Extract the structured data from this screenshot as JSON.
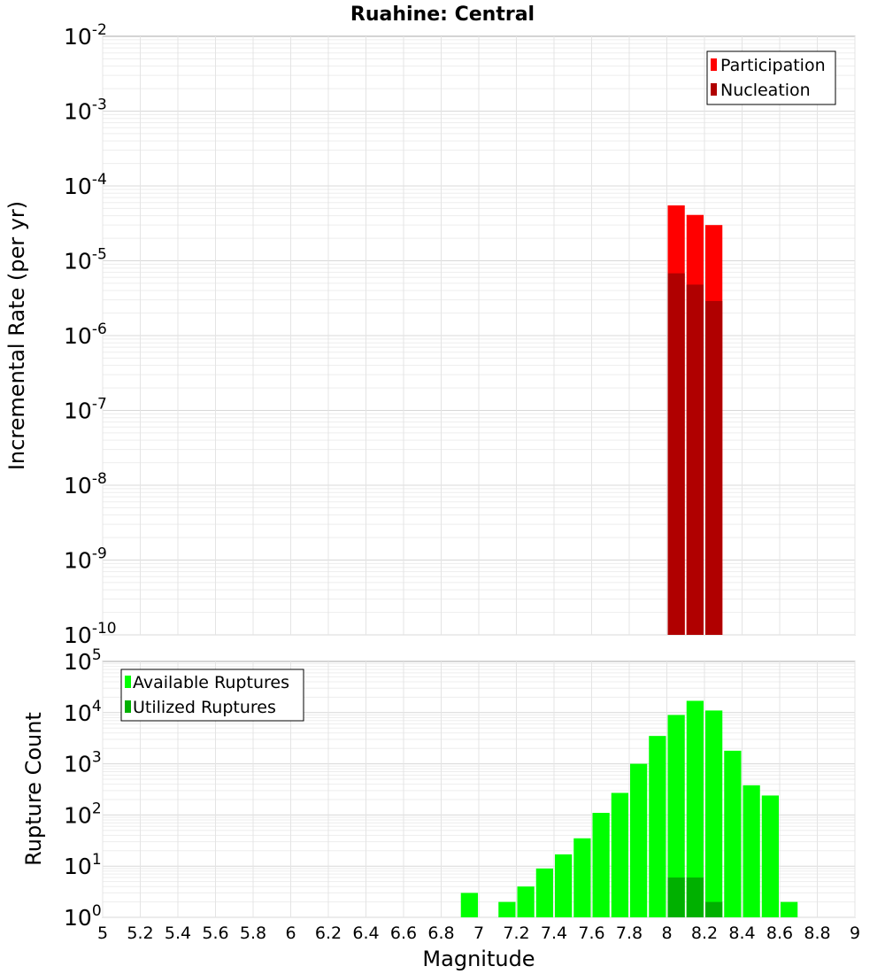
{
  "chart_data": [
    {
      "type": "bar",
      "title": "Ruahine: Central",
      "xlabel": "",
      "ylabel": "Incremental Rate (per yr)",
      "xlim": [
        5,
        9
      ],
      "ylim": [
        1e-10,
        0.01
      ],
      "yscale": "log",
      "grid": true,
      "legend_position": "top-right",
      "x": [
        8.05,
        8.15,
        8.25
      ],
      "series": [
        {
          "name": "Participation",
          "color": "#ff0000",
          "values": [
            5.5e-05,
            4.1e-05,
            3e-05
          ]
        },
        {
          "name": "Nucleation",
          "color": "#b00000",
          "values": [
            6.8e-06,
            4.8e-06,
            2.9e-06
          ]
        }
      ]
    },
    {
      "type": "bar",
      "title": "",
      "xlabel": "Magnitude",
      "ylabel": "Rupture Count",
      "xlim": [
        5,
        9
      ],
      "ylim": [
        1,
        100000.0
      ],
      "yscale": "log",
      "grid": true,
      "legend_position": "top-left",
      "x_ticks": [
        5,
        5.2,
        5.4,
        5.6,
        5.8,
        6,
        6.2,
        6.4,
        6.6,
        6.8,
        7,
        7.2,
        7.4,
        7.6,
        7.8,
        8,
        8.2,
        8.4,
        8.6,
        8.8,
        9
      ],
      "y_ticks": [
        "10^0",
        "10^1",
        "10^2",
        "10^3",
        "10^4",
        "10^5"
      ],
      "series": [
        {
          "name": "Available Ruptures",
          "color": "#00ff00",
          "x": [
            6.95,
            7.15,
            7.25,
            7.35,
            7.45,
            7.55,
            7.65,
            7.75,
            7.85,
            7.95,
            8.05,
            8.15,
            8.25,
            8.35,
            8.45,
            8.55,
            8.65
          ],
          "values": [
            3,
            2,
            4,
            9,
            17,
            35,
            110,
            270,
            1000,
            3500,
            9000,
            17000,
            11000,
            1800,
            380,
            240,
            2
          ]
        },
        {
          "name": "Utilized Ruptures",
          "color": "#00b000",
          "x": [
            8.05,
            8.15,
            8.25
          ],
          "values": [
            6,
            6,
            2
          ]
        }
      ]
    }
  ],
  "top_y_ticks": [
    "-2",
    "-3",
    "-4",
    "-5",
    "-6",
    "-7",
    "-8",
    "-9",
    "-10"
  ]
}
